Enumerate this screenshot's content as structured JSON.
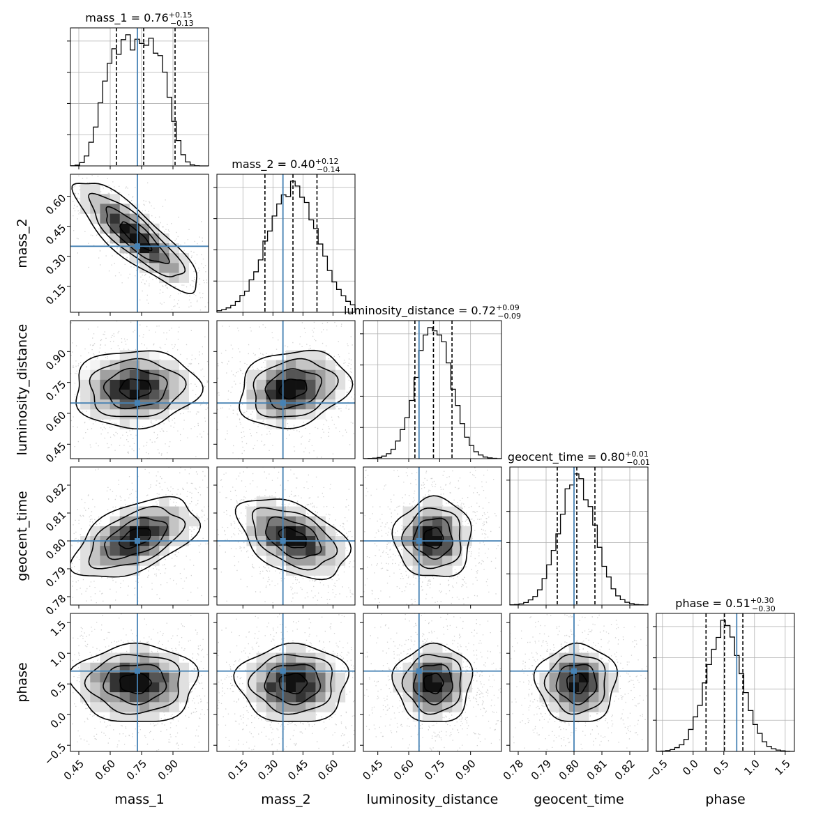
{
  "chart_data": {
    "type": "corner",
    "parameters": [
      "mass_1",
      "mass_2",
      "luminosity_distance",
      "geocent_time",
      "phase"
    ],
    "axis_labels": [
      "mass_1",
      "mass_2",
      "luminosity_distance",
      "geocent_time",
      "phase"
    ],
    "titles": [
      {
        "param": "mass_1",
        "median": "0.76",
        "plus": "+0.15",
        "minus": "−0.13"
      },
      {
        "param": "mass_2",
        "median": "0.40",
        "plus": "+0.12",
        "minus": "−0.14"
      },
      {
        "param": "luminosity_distance",
        "median": "0.72",
        "plus": "+0.09",
        "minus": "−0.09"
      },
      {
        "param": "geocent_time",
        "median": "0.80",
        "plus": "+0.01",
        "minus": "−0.01"
      },
      {
        "param": "phase",
        "median": "0.51",
        "plus": "+0.30",
        "minus": "−0.30"
      }
    ],
    "ranges": [
      [
        0.41,
        1.07
      ],
      [
        0.02,
        0.71
      ],
      [
        0.38,
        1.05
      ],
      [
        0.777,
        0.8265
      ],
      [
        -0.6,
        1.65
      ]
    ],
    "ticks": [
      [
        "0.45",
        "0.60",
        "0.75",
        "0.90"
      ],
      [
        "0.15",
        "0.30",
        "0.45",
        "0.60"
      ],
      [
        "0.45",
        "0.60",
        "0.75",
        "0.90"
      ],
      [
        "0.78",
        "0.79",
        "0.80",
        "0.81",
        "0.82"
      ],
      [
        "−0.5",
        "0.0",
        "0.5",
        "1.0",
        "1.5"
      ]
    ],
    "tick_values": [
      [
        0.45,
        0.6,
        0.75,
        0.9
      ],
      [
        0.15,
        0.3,
        0.45,
        0.6
      ],
      [
        0.45,
        0.6,
        0.75,
        0.9
      ],
      [
        0.78,
        0.79,
        0.8,
        0.81,
        0.82
      ],
      [
        -0.5,
        0.0,
        0.5,
        1.0,
        1.5
      ]
    ],
    "truths": [
      0.73,
      0.35,
      0.65,
      0.8,
      0.71
    ],
    "quantiles": [
      [
        0.63,
        0.76,
        0.91
      ],
      [
        0.26,
        0.4,
        0.52
      ],
      [
        0.63,
        0.72,
        0.81
      ],
      [
        0.794,
        0.801,
        0.8075
      ],
      [
        0.21,
        0.51,
        0.81
      ]
    ],
    "means": [
      0.72,
      0.4,
      0.72,
      0.801,
      0.51
    ],
    "sigmas": [
      0.135,
      0.125,
      0.085,
      0.0065,
      0.29
    ],
    "correlations": [
      [
        1.0,
        -0.85,
        0.05,
        0.5,
        0.0
      ],
      [
        -0.85,
        1.0,
        0.2,
        -0.45,
        0.0
      ],
      [
        0.05,
        0.2,
        1.0,
        0.0,
        0.0
      ],
      [
        0.5,
        -0.45,
        0.0,
        1.0,
        0.0
      ],
      [
        0.0,
        0.0,
        0.0,
        0.0,
        1.0
      ]
    ],
    "truth_color": "#4682b4",
    "grid": true
  }
}
